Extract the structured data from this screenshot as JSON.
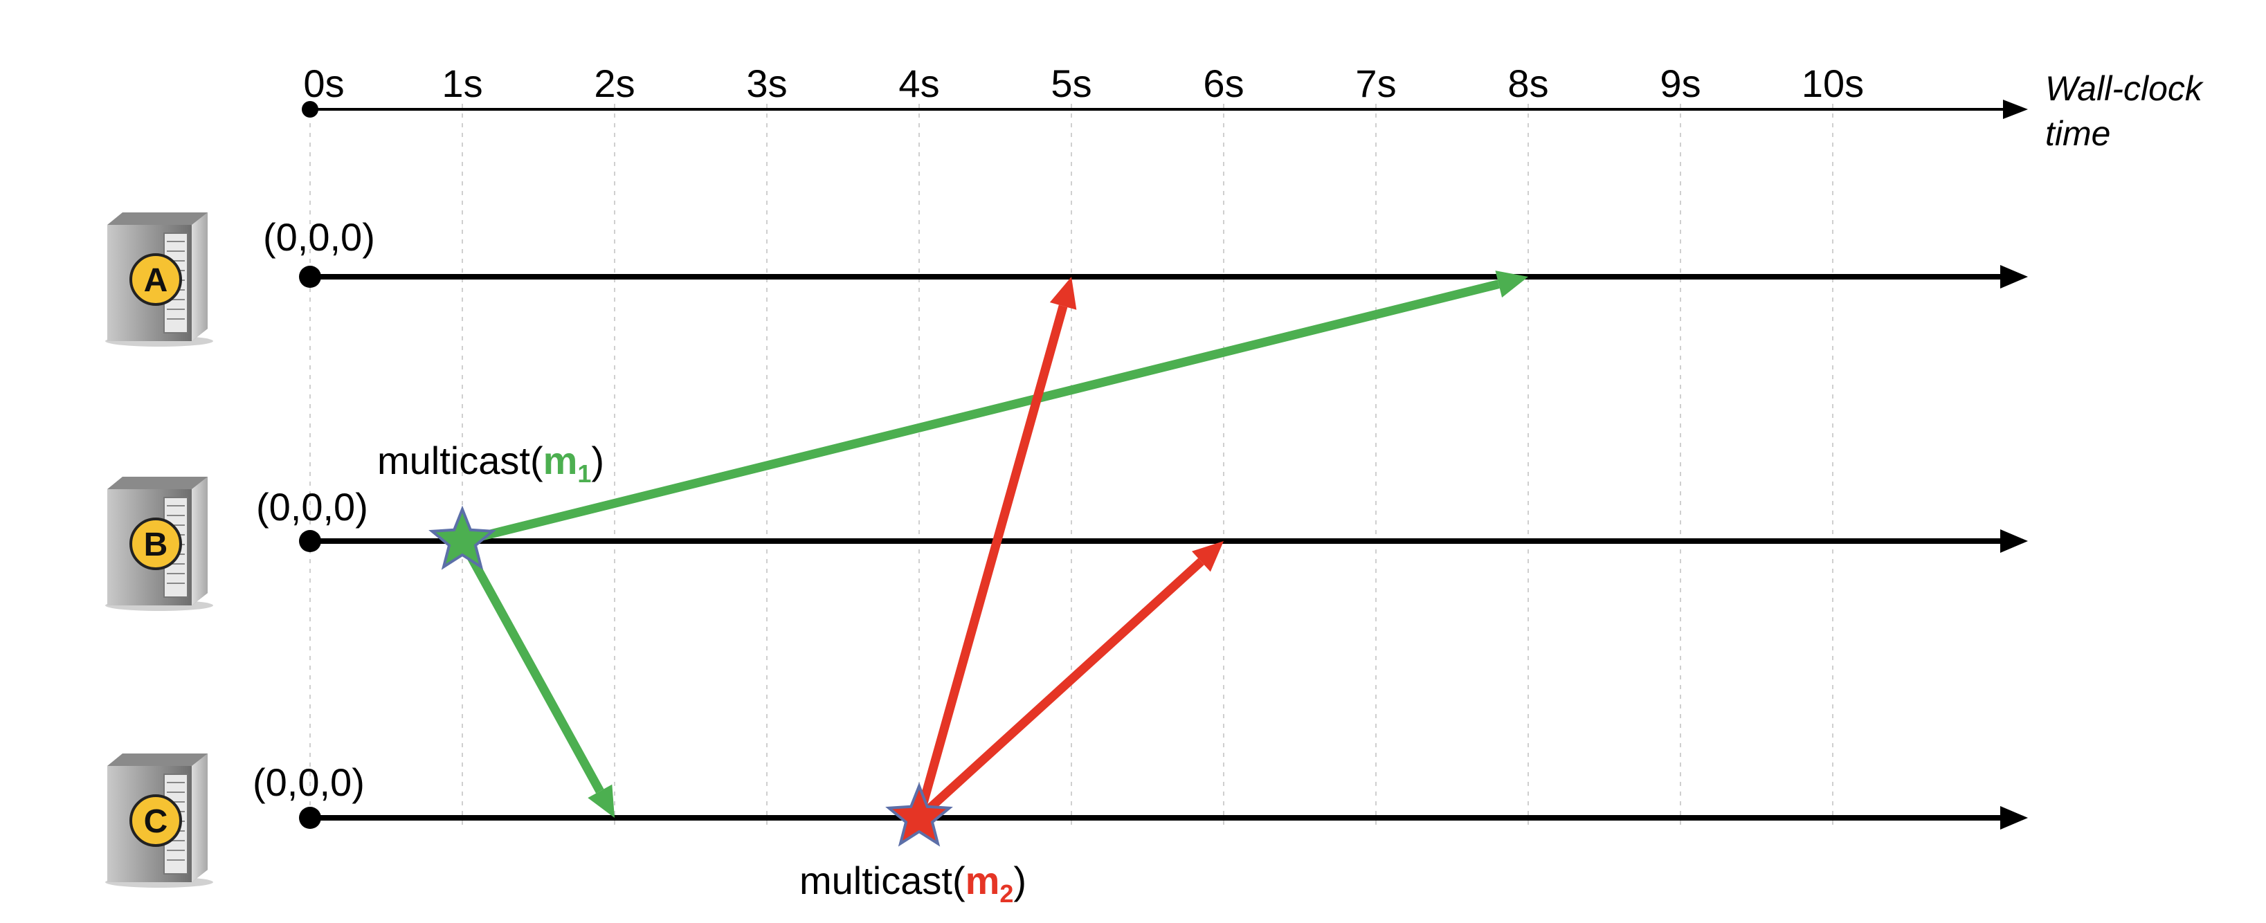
{
  "axis": {
    "ticks": [
      "0s",
      "1s",
      "2s",
      "3s",
      "4s",
      "5s",
      "6s",
      "7s",
      "8s",
      "9s",
      "10s"
    ],
    "label_line1": "Wall-clock",
    "label_line2": "time"
  },
  "processes": [
    {
      "id": "A",
      "vector": "(0,0,0)"
    },
    {
      "id": "B",
      "vector": "(0,0,0)"
    },
    {
      "id": "C",
      "vector": "(0,0,0)"
    }
  ],
  "events": [
    {
      "name": "m1",
      "prefix": "multicast(",
      "msg": "m",
      "sub": "1",
      "suffix": ")",
      "process": "B",
      "time_s": 1,
      "color": "#4caf50"
    },
    {
      "name": "m2",
      "prefix": "multicast(",
      "msg": "m",
      "sub": "2",
      "suffix": ")",
      "process": "C",
      "time_s": 4,
      "color": "#e53525"
    }
  ],
  "messages": [
    {
      "name": "m1-to-A",
      "from_process": "B",
      "from_time_s": 1,
      "to_process": "A",
      "to_time_s": 8,
      "color": "#4caf50"
    },
    {
      "name": "m1-to-C",
      "from_process": "B",
      "from_time_s": 1,
      "to_process": "C",
      "to_time_s": 2,
      "color": "#4caf50"
    },
    {
      "name": "m2-to-A",
      "from_process": "C",
      "from_time_s": 4,
      "to_process": "A",
      "to_time_s": 5,
      "color": "#e53525"
    },
    {
      "name": "m2-to-B",
      "from_process": "C",
      "from_time_s": 4,
      "to_process": "B",
      "to_time_s": 6,
      "color": "#e53525"
    }
  ],
  "colors": {
    "timeline": "#000000",
    "gridline": "#cfcfcf",
    "badge_fill": "#f6c232",
    "server_body": "#8a8a8a"
  }
}
